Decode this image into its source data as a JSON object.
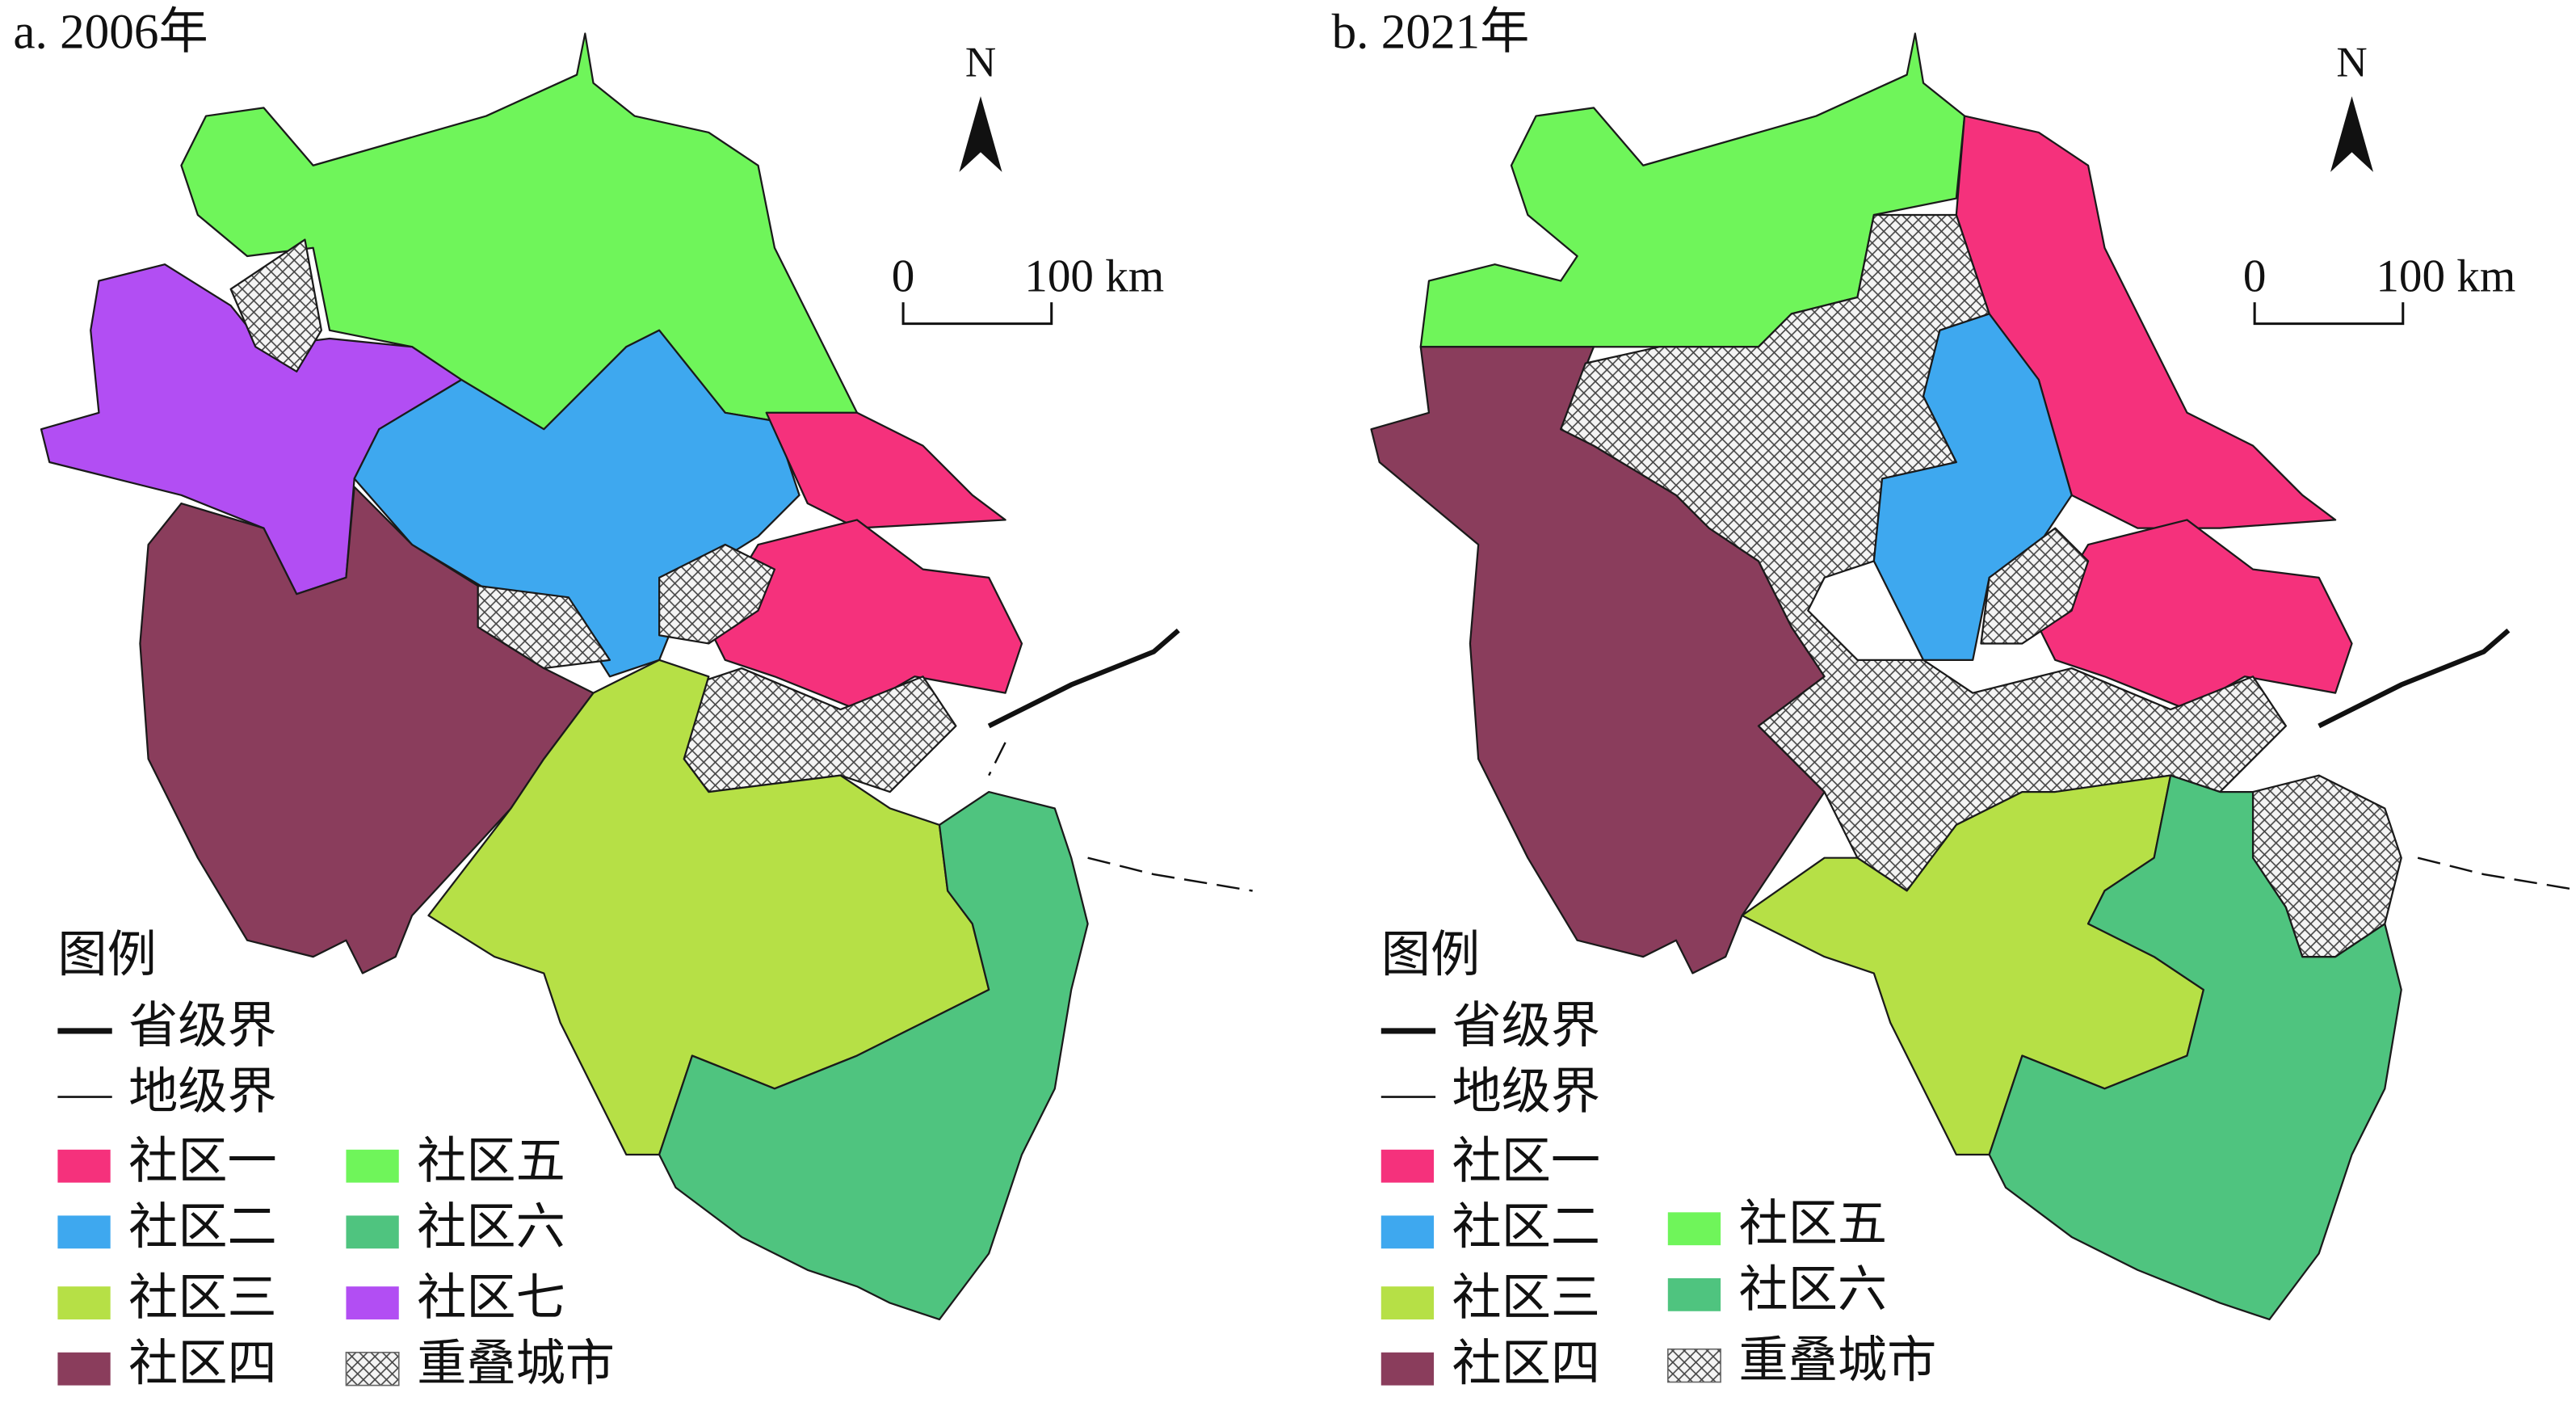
{
  "panels": [
    {
      "title": "a. 2006年",
      "north": "N",
      "scale": {
        "start": "0",
        "end": "100 km"
      },
      "legend_title": "图例",
      "lines": [
        {
          "label": "省级界"
        },
        {
          "label": "地级界"
        }
      ],
      "items": [
        {
          "label": "社区一",
          "color": "#f5317c"
        },
        {
          "label": "社区二",
          "color": "#3ea8ef"
        },
        {
          "label": "社区三",
          "color": "#b6e046"
        },
        {
          "label": "社区四",
          "color": "#8a3d5c"
        },
        {
          "label": "社区五",
          "color": "#6ff55a"
        },
        {
          "label": "社区六",
          "color": "#4fc47f"
        },
        {
          "label": "社区七",
          "color": "#b24ef3"
        },
        {
          "label": "重叠城市"
        }
      ]
    },
    {
      "title": "b. 2021年",
      "north": "N",
      "scale": {
        "start": "0",
        "end": "100 km"
      },
      "legend_title": "图例",
      "lines": [
        {
          "label": "省级界"
        },
        {
          "label": "地级界"
        }
      ],
      "items": [
        {
          "label": "社区一",
          "color": "#f5317c"
        },
        {
          "label": "社区二",
          "color": "#3ea8ef"
        },
        {
          "label": "社区三",
          "color": "#b6e046"
        },
        {
          "label": "社区四",
          "color": "#8a3d5c"
        },
        {
          "label": "社区五",
          "color": "#6ff55a"
        },
        {
          "label": "社区六",
          "color": "#4fc47f"
        },
        {
          "label": "重叠城市"
        }
      ]
    }
  ]
}
